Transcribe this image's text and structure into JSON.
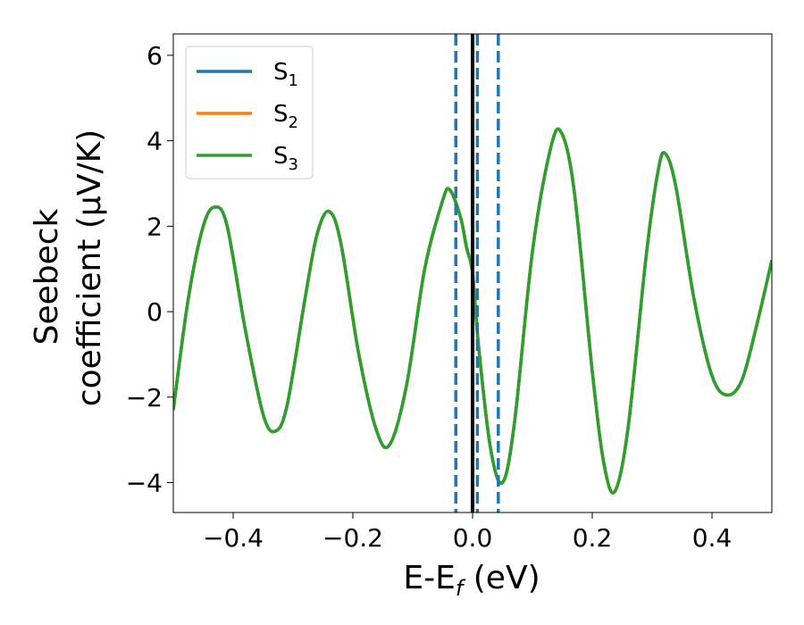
{
  "chart_data": {
    "type": "line",
    "xlabel": {
      "main": "E-E",
      "sub": "f",
      "tail": " (eV)"
    },
    "ylabel": {
      "line1": "Seebeck",
      "line2": "coefficient  (μV/K)"
    },
    "xlim": [
      -0.5,
      0.5
    ],
    "ylim": [
      -4.7,
      6.5
    ],
    "xticks": [
      -0.4,
      -0.2,
      0.0,
      0.2,
      0.4
    ],
    "xtick_labels": [
      "−0.4",
      "−0.2",
      "0.0",
      "0.2",
      "0.4"
    ],
    "yticks": [
      -4,
      -2,
      0,
      2,
      4,
      6
    ],
    "ytick_labels": [
      "−4",
      "−2",
      "0",
      "2",
      "4",
      "6"
    ],
    "legend_position": "top-left",
    "vertical_lines": [
      {
        "x": -0.028,
        "style": "dashed",
        "color": "#1f77b4"
      },
      {
        "x": 0.008,
        "style": "dashed",
        "color": "#1f77b4"
      },
      {
        "x": 0.043,
        "style": "dashed",
        "color": "#1f77b4"
      },
      {
        "x": 0.0,
        "style": "solid",
        "color": "#000000"
      }
    ],
    "series": [
      {
        "name": "S",
        "sub": "1",
        "color": "#1f77b4"
      },
      {
        "name": "S",
        "sub": "2",
        "color": "#ff7f0e"
      },
      {
        "name": "S",
        "sub": "3",
        "color": "#2ca02c"
      }
    ],
    "x": [
      -0.5,
      -0.475,
      -0.45,
      -0.43,
      -0.41,
      -0.38,
      -0.35,
      -0.33,
      -0.31,
      -0.28,
      -0.26,
      -0.24,
      -0.22,
      -0.19,
      -0.16,
      -0.138,
      -0.11,
      -0.08,
      -0.05,
      -0.038,
      -0.02,
      -0.01,
      0.0,
      0.01,
      0.03,
      0.05,
      0.07,
      0.1,
      0.13,
      0.148,
      0.17,
      0.2,
      0.22,
      0.238,
      0.26,
      0.29,
      0.31,
      0.322,
      0.34,
      0.37,
      0.4,
      0.425,
      0.45,
      0.475,
      0.5
    ],
    "y": [
      -2.3,
      0.3,
      2.0,
      2.45,
      2.0,
      -0.4,
      -2.4,
      -2.8,
      -2.2,
      0.3,
      1.8,
      2.35,
      1.6,
      -1.0,
      -2.8,
      -3.1,
      -1.7,
      1.0,
      2.6,
      2.85,
      2.2,
      1.5,
      0.9,
      -0.8,
      -3.2,
      -4.0,
      -2.6,
      1.4,
      3.8,
      4.2,
      2.8,
      -1.4,
      -3.6,
      -4.2,
      -2.7,
      1.3,
      3.3,
      3.7,
      2.9,
      0.3,
      -1.5,
      -1.95,
      -1.6,
      -0.3,
      1.2
    ]
  }
}
